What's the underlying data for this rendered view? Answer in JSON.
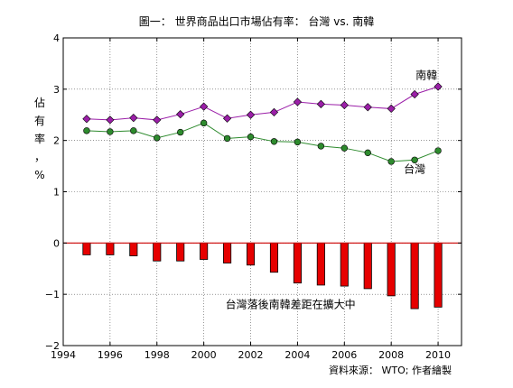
{
  "chart_data": {
    "type": "line+bar",
    "title": "圖一： 世界商品出口市場佔有率： 台灣 vs. 南韓",
    "ylabel": [
      "佔",
      "有",
      "率",
      "，",
      "%"
    ],
    "xlim": [
      1994,
      2011
    ],
    "ylim": [
      -2,
      4
    ],
    "x_ticks": [
      1994,
      1996,
      1998,
      2000,
      2002,
      2004,
      2006,
      2008,
      2010
    ],
    "y_ticks": [
      -2,
      -1,
      0,
      1,
      2,
      3,
      4
    ],
    "grid": true,
    "x": [
      1995,
      1996,
      1997,
      1998,
      1999,
      2000,
      2001,
      2002,
      2003,
      2004,
      2005,
      2006,
      2007,
      2008,
      2009,
      2010
    ],
    "series": [
      {
        "name": "南韓",
        "kind": "line",
        "color": "#9b1fa8",
        "marker": "diamond",
        "values": [
          2.42,
          2.4,
          2.44,
          2.4,
          2.51,
          2.66,
          2.43,
          2.5,
          2.55,
          2.75,
          2.71,
          2.69,
          2.65,
          2.62,
          2.9,
          3.05
        ]
      },
      {
        "name": "台灣",
        "kind": "line",
        "color": "#2e8b2e",
        "marker": "circle",
        "values": [
          2.19,
          2.17,
          2.19,
          2.05,
          2.16,
          2.34,
          2.04,
          2.07,
          1.98,
          1.97,
          1.89,
          1.85,
          1.76,
          1.59,
          1.62,
          1.8
        ]
      },
      {
        "name": "台灣落後南韓差距在擴大中",
        "kind": "bar",
        "color": "#e60000",
        "values": [
          -0.23,
          -0.23,
          -0.25,
          -0.35,
          -0.35,
          -0.32,
          -0.39,
          -0.43,
          -0.57,
          -0.78,
          -0.82,
          -0.84,
          -0.89,
          -1.03,
          -1.28,
          -1.25
        ]
      }
    ],
    "annotations": [
      {
        "text": "南韓",
        "x": 2009.5,
        "y": 3.2
      },
      {
        "text": "台灣",
        "x": 2009.0,
        "y": 1.37
      },
      {
        "text": "台灣落後南韓差距在擴大中",
        "x": 2003.7,
        "y": -1.27
      }
    ],
    "zero_line_color": "#cc0000"
  },
  "source_note": "資料來源： WTO; 作者繪製"
}
